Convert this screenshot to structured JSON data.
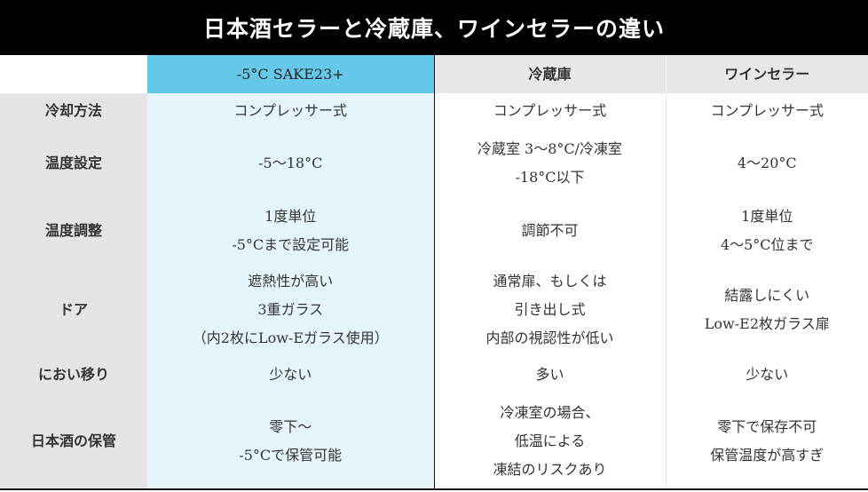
{
  "title": "日本酒セラーと冷蔵庫、ワインセラーの違い",
  "columns": [
    "",
    "-5°C SAKE23+",
    "冷蔵庫",
    "ワインセラー"
  ],
  "rows": [
    {
      "label": "冷却方法",
      "cells": [
        [
          "コンプレッサー式"
        ],
        [
          "コンプレッサー式"
        ],
        [
          "コンプレッサー式"
        ]
      ]
    },
    {
      "label": "温度設定",
      "cells": [
        [
          "-5〜18°C"
        ],
        [
          "冷蔵室 3〜8°C/冷凍室",
          "-18°C以下"
        ],
        [
          "4〜20°C"
        ]
      ]
    },
    {
      "label": "温度調整",
      "cells": [
        [
          "1度単位",
          "-5°Cまで設定可能"
        ],
        [
          "調節不可"
        ],
        [
          "1度単位",
          "4〜5°C位まで"
        ]
      ]
    },
    {
      "label": "ドア",
      "cells": [
        [
          "遮熱性が高い",
          "3重ガラス",
          "（内2枚にLow-Eガラス使用）"
        ],
        [
          "通常扉、もしくは",
          "引き出し式",
          "内部の視認性が低い"
        ],
        [
          "結露しにくい",
          "Low-E2枚ガラス扉"
        ]
      ]
    },
    {
      "label": "におい移り",
      "cells": [
        [
          "少ない"
        ],
        [
          "多い"
        ],
        [
          "少ない"
        ]
      ]
    },
    {
      "label": "日本酒の保管",
      "cells": [
        [
          "零下〜",
          "-5°Cで保管可能"
        ],
        [
          "冷凍室の場合、",
          "低温による",
          "凍結のリスクあり"
        ],
        [
          "零下で保存不可",
          "保管温度が高すぎ"
        ]
      ]
    }
  ],
  "colors": {
    "highlight_header": "#66c8e8",
    "highlight_body": "#e6f4fc",
    "label_bg": "#e6e3e6",
    "title_bg": "#000000"
  }
}
